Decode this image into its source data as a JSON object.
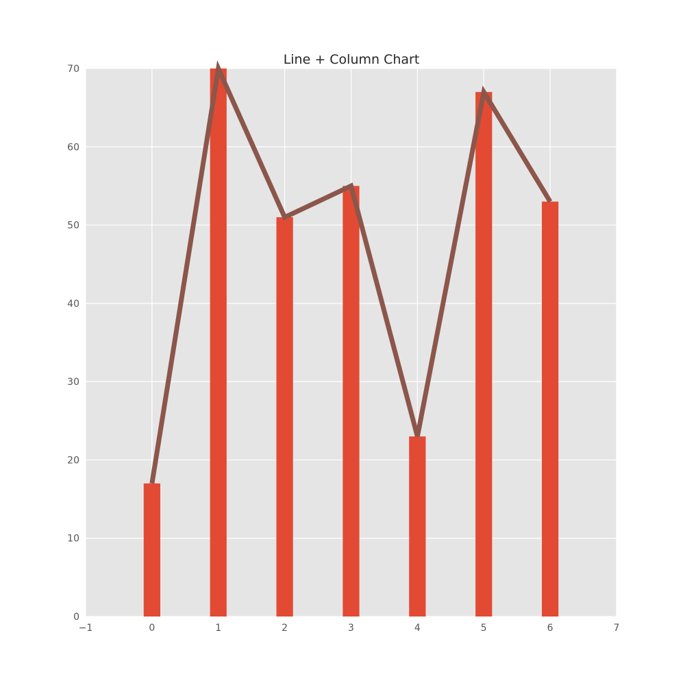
{
  "chart_data": {
    "type": "bar",
    "title": "Line + Column Chart",
    "xlabel": "",
    "ylabel": "",
    "x": [
      0,
      1,
      2,
      3,
      4,
      5,
      6
    ],
    "xlim": [
      -1,
      7
    ],
    "ylim": [
      0,
      70
    ],
    "x_ticks": [
      "−1",
      "0",
      "1",
      "2",
      "3",
      "4",
      "5",
      "6",
      "7"
    ],
    "y_ticks": [
      "0",
      "10",
      "20",
      "30",
      "40",
      "50",
      "60",
      "70"
    ],
    "grid": true,
    "series": [
      {
        "type": "bar",
        "values": [
          17,
          70,
          51,
          55,
          23,
          67,
          53
        ],
        "color": "#e24a33"
      },
      {
        "type": "line",
        "values": [
          17,
          70,
          51,
          55,
          23,
          67,
          53
        ],
        "color": "#8c564b"
      }
    ],
    "colors": {
      "plot_background": "#e5e5e5",
      "grid": "#ffffff",
      "bar": "#e24a33",
      "line": "#8c564b"
    }
  }
}
